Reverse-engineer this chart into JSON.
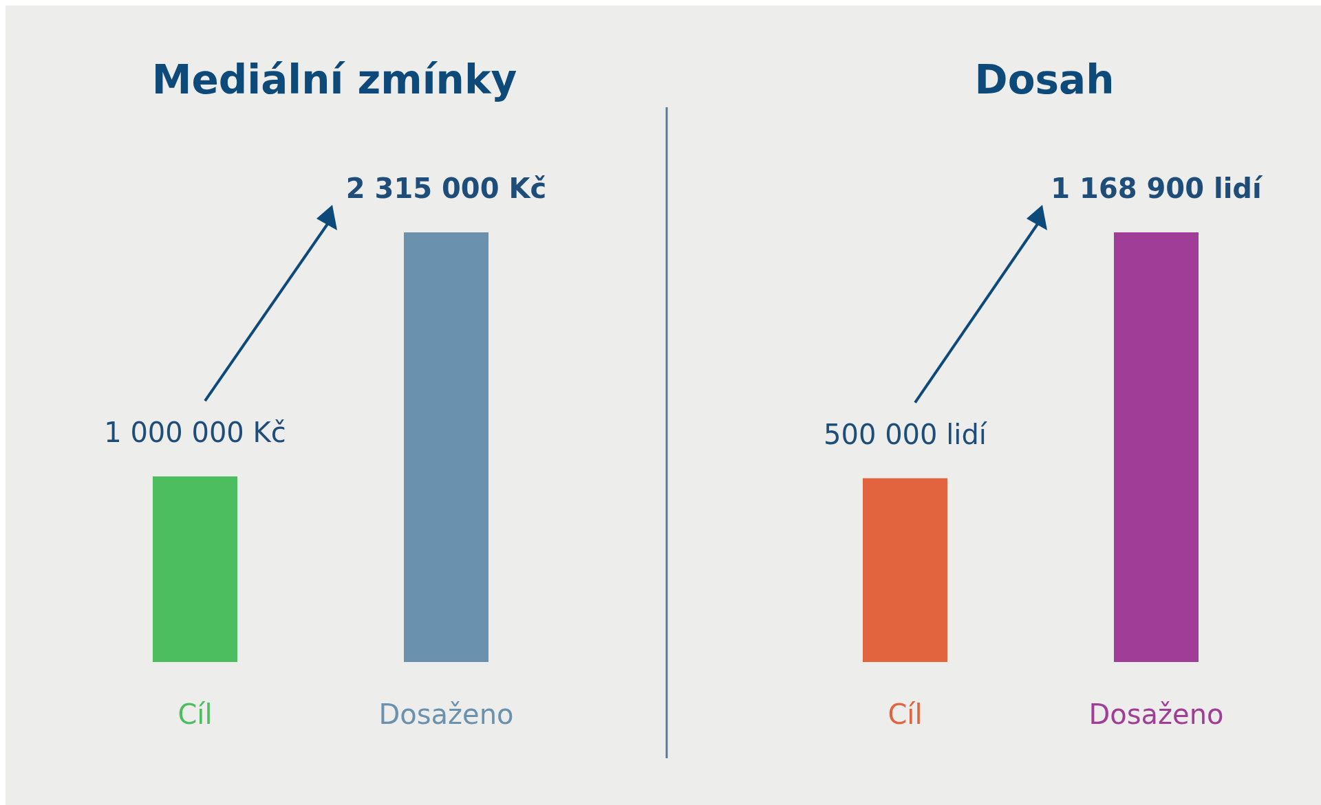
{
  "chart_data": [
    {
      "type": "bar",
      "title": "Mediální zmínky",
      "categories": [
        "Cíl",
        "Dosaženo"
      ],
      "values": [
        1000000,
        2315000
      ],
      "colors": [
        "#4cbe5f",
        "#6a91ae"
      ],
      "value_labels": [
        "1 000 000 Kč",
        "2 315 000 Kč"
      ]
    },
    {
      "type": "bar",
      "title": "Dosah",
      "categories": [
        "Cíl",
        "Dosaženo"
      ],
      "values": [
        500000,
        1168900
      ],
      "colors": [
        "#e2643f",
        "#a03d96"
      ],
      "value_labels": [
        "500 000 lidí",
        "1 168 900 lidí"
      ]
    }
  ]
}
